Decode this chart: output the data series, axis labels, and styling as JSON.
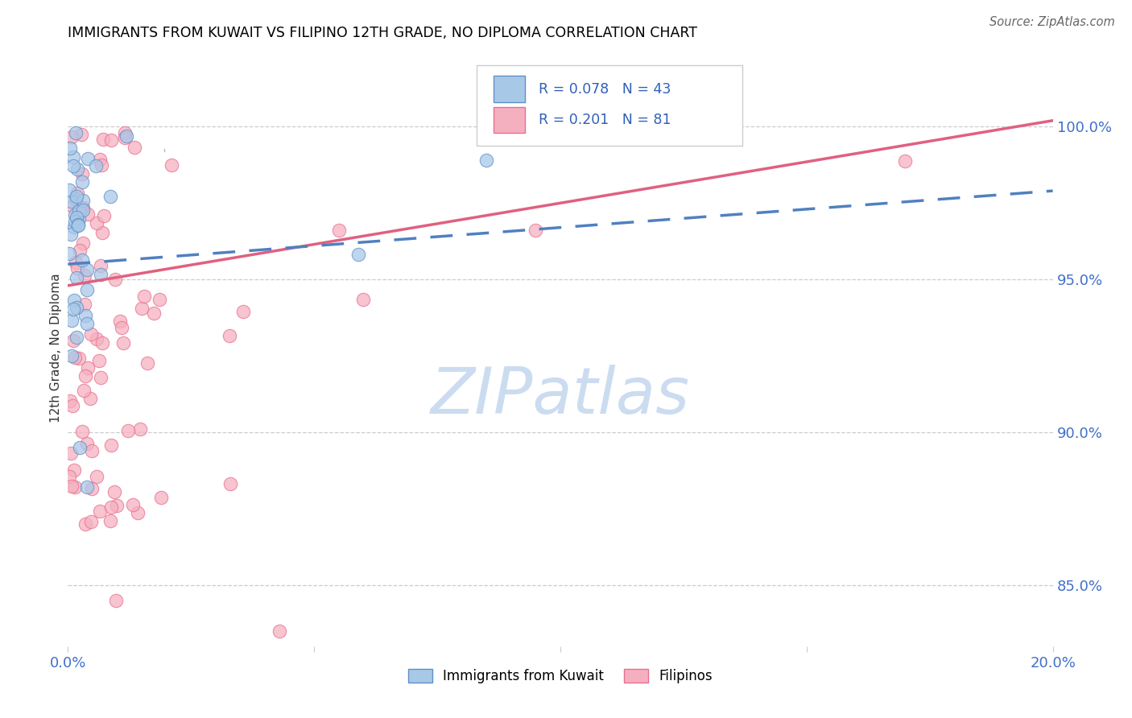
{
  "title": "IMMIGRANTS FROM KUWAIT VS FILIPINO 12TH GRADE, NO DIPLOMA CORRELATION CHART",
  "source": "Source: ZipAtlas.com",
  "ylabel": "12th Grade, No Diploma",
  "yaxis_labels": [
    "100.0%",
    "95.0%",
    "90.0%",
    "85.0%"
  ],
  "yaxis_values": [
    1.0,
    0.95,
    0.9,
    0.85
  ],
  "color_kuwait": "#a8c8e8",
  "color_filipino": "#f5b0c0",
  "color_border_kuwait": "#6090c8",
  "color_border_filipino": "#e87090",
  "color_line_kuwait": "#5080c0",
  "color_line_filipino": "#e06080",
  "color_text_blue": "#4070c8",
  "color_watermark": "#ccdcf0",
  "xlim": [
    0.0,
    0.2
  ],
  "ylim": [
    0.83,
    1.025
  ],
  "legend_text_color": "#3060b8"
}
